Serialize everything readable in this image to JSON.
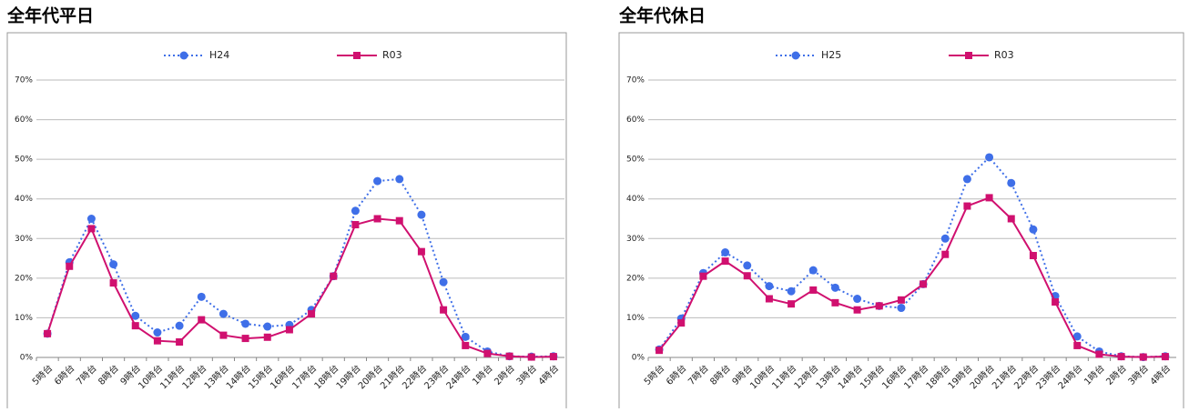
{
  "chart_data": [
    {
      "type": "line",
      "title": "全年代平日",
      "categories": [
        "5時台",
        "6時台",
        "7時台",
        "8時台",
        "9時台",
        "10時台",
        "11時台",
        "12時台",
        "13時台",
        "14時台",
        "15時台",
        "16時台",
        "17時台",
        "18時台",
        "19時台",
        "20時台",
        "21時台",
        "22時台",
        "23時台",
        "24時台",
        "1時台",
        "2時台",
        "3時台",
        "4時台"
      ],
      "series": [
        {
          "name": "H24",
          "color": "#3f6fe8",
          "linestyle": "dotted",
          "marker": "circle",
          "values": [
            6,
            24,
            35,
            23.5,
            10.5,
            6.3,
            8,
            15.3,
            11,
            8.5,
            7.8,
            8.2,
            12,
            20.5,
            37,
            44.5,
            45,
            36,
            19,
            5.2,
            1.5,
            0.3,
            0.2,
            0.3
          ]
        },
        {
          "name": "R03",
          "color": "#d0106f",
          "linestyle": "solid",
          "marker": "square",
          "values": [
            6,
            23,
            32.5,
            18.8,
            8,
            4.2,
            3.9,
            9.5,
            5.6,
            4.8,
            5.1,
            7,
            11,
            20.5,
            33.5,
            35,
            34.5,
            26.7,
            12,
            3,
            1,
            0.3,
            0.1,
            0.2
          ]
        }
      ],
      "ylim": [
        0,
        70
      ],
      "yticks": [
        {
          "value": 0,
          "label": "0%"
        },
        {
          "value": 10,
          "label": "10%"
        },
        {
          "value": 20,
          "label": "20%"
        },
        {
          "value": 30,
          "label": "30%"
        },
        {
          "value": 40,
          "label": "40%"
        },
        {
          "value": 50,
          "label": "50%"
        },
        {
          "value": 60,
          "label": "60%"
        },
        {
          "value": 70,
          "label": "70%"
        }
      ],
      "grid": true,
      "legend": "top"
    },
    {
      "type": "line",
      "title": "全年代休日",
      "categories": [
        "5時台",
        "6時台",
        "7時台",
        "8時台",
        "9時台",
        "10時台",
        "11時台",
        "12時台",
        "13時台",
        "14時台",
        "15時台",
        "16時台",
        "17時台",
        "18時台",
        "19時台",
        "20時台",
        "21時台",
        "22時台",
        "23時台",
        "24時台",
        "1時台",
        "2時台",
        "3時台",
        "4時台"
      ],
      "series": [
        {
          "name": "H25",
          "color": "#3f6fe8",
          "linestyle": "dotted",
          "marker": "circle",
          "values": [
            2,
            9.8,
            21.3,
            26.5,
            23.2,
            18,
            16.7,
            22,
            17.6,
            14.8,
            13,
            12.5,
            18.5,
            30,
            45,
            50.5,
            44,
            32.3,
            15.5,
            5.3,
            1.5,
            0.3,
            0.1,
            0.3
          ]
        },
        {
          "name": "R03",
          "color": "#d0106f",
          "linestyle": "solid",
          "marker": "square",
          "values": [
            1.8,
            8.7,
            20.5,
            24.3,
            20.6,
            14.8,
            13.5,
            17,
            13.8,
            12,
            13,
            14.5,
            18.5,
            26,
            38.2,
            40.3,
            35,
            25.7,
            14,
            3,
            0.8,
            0.2,
            0.1,
            0.2
          ]
        }
      ],
      "ylim": [
        0,
        70
      ],
      "yticks": [
        {
          "value": 0,
          "label": "0%"
        },
        {
          "value": 10,
          "label": "10%"
        },
        {
          "value": 20,
          "label": "20%"
        },
        {
          "value": 30,
          "label": "30%"
        },
        {
          "value": 40,
          "label": "40%"
        },
        {
          "value": 50,
          "label": "50%"
        },
        {
          "value": 60,
          "label": "60%"
        },
        {
          "value": 70,
          "label": "70%"
        }
      ],
      "grid": true,
      "legend": "top"
    }
  ]
}
